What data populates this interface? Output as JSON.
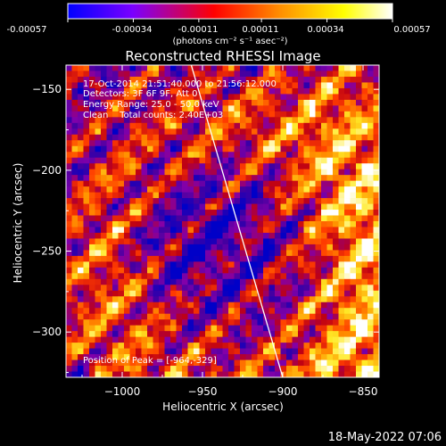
{
  "colorbar": {
    "tick_labels": [
      "-0.00057",
      "-0.00034",
      "-0.00011",
      "0.00011",
      "0.00034",
      "0.00057"
    ],
    "unit_label": "(photons cm⁻² s⁻¹ asec⁻²)",
    "range": [
      -0.00057,
      0.00057
    ],
    "colormap": [
      "#0000ff",
      "#7a00ff",
      "#ff0000",
      "#ff8c00",
      "#ffff00",
      "#ffffff"
    ]
  },
  "chart_data": {
    "type": "heatmap",
    "title": "Reconstructed RHESSI Image",
    "xlabel": "Heliocentric X (arcsec)",
    "ylabel": "Heliocentric Y (arcsec)",
    "xlim": [
      -1035,
      -840
    ],
    "ylim": [
      -328,
      -135
    ],
    "x_ticks": [
      -1000,
      -950,
      -900,
      -850
    ],
    "y_ticks": [
      -300,
      -250,
      -200,
      -150
    ],
    "x_tick_labels": [
      "−1000",
      "−950",
      "−900",
      "−850"
    ],
    "y_tick_labels": [
      "−300",
      "−250",
      "−200",
      "−150"
    ],
    "annotations": [
      "17-Oct-2014 21:51:40.000 to 21:56:12.000",
      "Detectors: 3F 6F 9F, Att 0",
      "Energy Range: 25.0 - 50.0 keV",
      "Clean    Total counts: 2.40E+03"
    ],
    "peak_label": "Position of Peak = [-964,-329]",
    "peak_position": [
      -964,
      -329
    ],
    "limb_line": [
      [
        -957,
        -135
      ],
      [
        -900,
        -328
      ]
    ],
    "grid": false
  },
  "footer": {
    "timestamp": "18-May-2022 07:06"
  }
}
